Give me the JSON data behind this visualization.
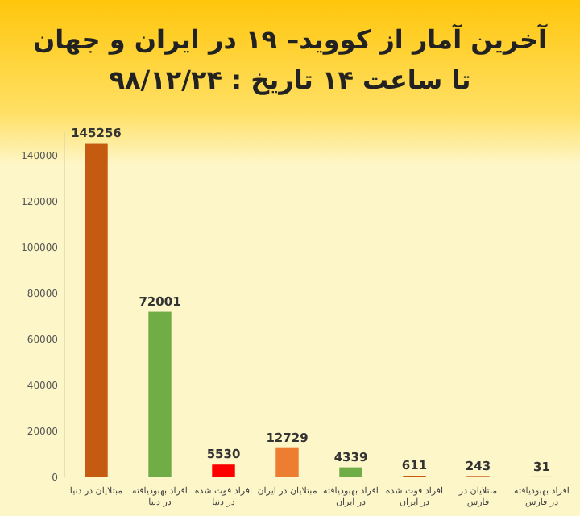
{
  "chart_data": {
    "type": "bar",
    "title": "آخرین آمار از کووید– ۱۹ در ایران و جهان",
    "subtitle": "تا ساعت ۱۴ تاریخ : ۹۸/۱۲/۲۴",
    "categories": [
      "مبتلایان در دنیا",
      "افراد بهبودیافته در دنیا",
      "افراد فوت شده در دنیا",
      "مبتلایان در ایران",
      "افراد بهبودیافته در ایران",
      "افراد فوت شده در ایران",
      "مبتلایان در فارس",
      "افراد بهبودیافته در فارس"
    ],
    "values": [
      145256,
      72001,
      5530,
      12729,
      4339,
      611,
      243,
      31
    ],
    "colors": [
      "#c55a11",
      "#70ad47",
      "#ff0000",
      "#ed7d31",
      "#70ad47",
      "#c55a11",
      "#c55a11",
      "#70ad47"
    ],
    "ylim": [
      0,
      150000
    ],
    "yticks": [
      0,
      20000,
      40000,
      60000,
      80000,
      100000,
      120000,
      140000
    ],
    "data_labels": true,
    "grid": false
  }
}
